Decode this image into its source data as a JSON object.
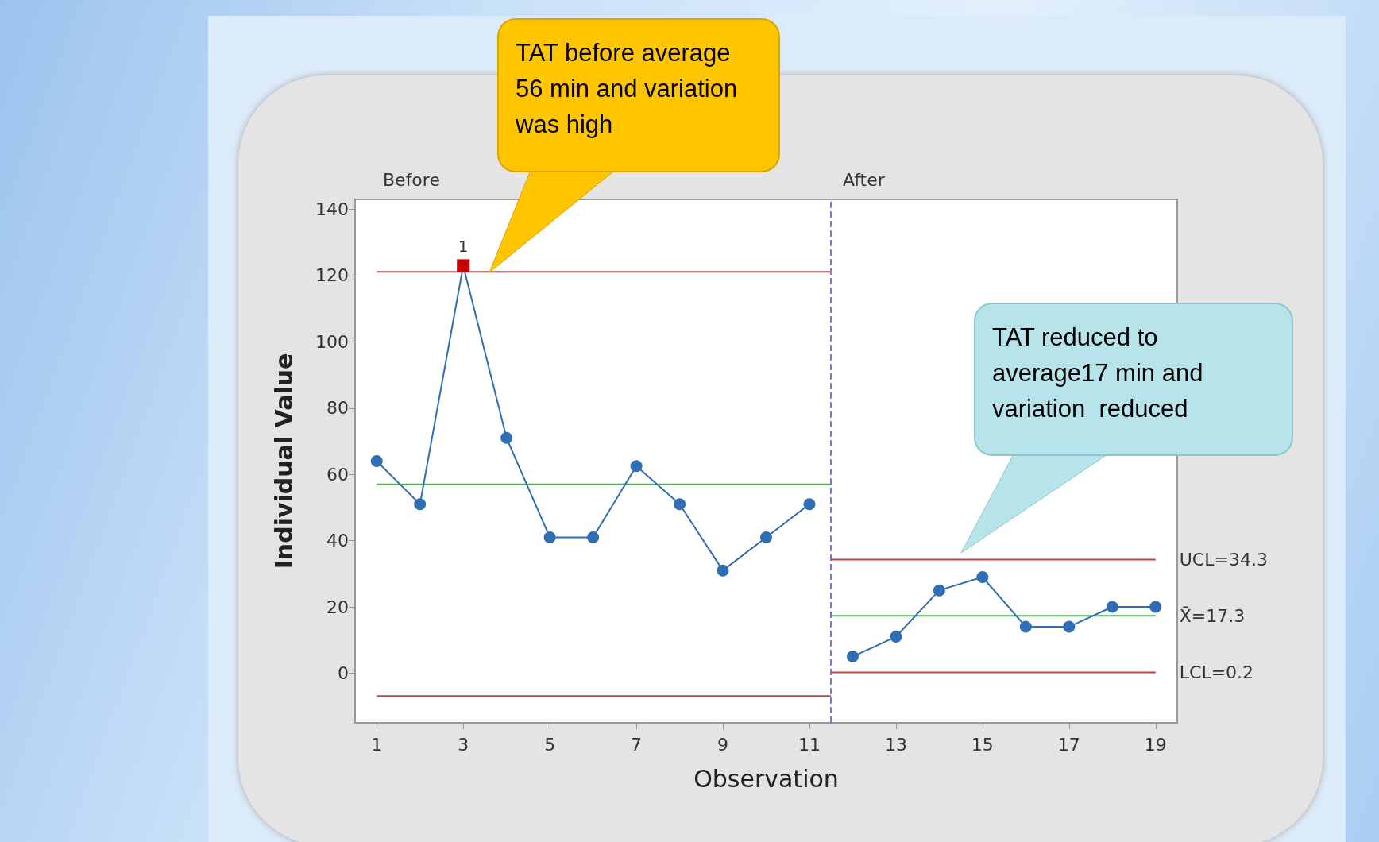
{
  "chart_data": {
    "type": "line",
    "xlabel": "Observation",
    "ylabel": "Individual Value",
    "xlim": [
      0.5,
      19.5
    ],
    "ylim": [
      -15,
      143
    ],
    "xticks": [
      1,
      3,
      5,
      7,
      9,
      11,
      13,
      15,
      17,
      19
    ],
    "yticks": [
      0,
      20,
      40,
      60,
      80,
      100,
      120,
      140
    ],
    "grid": false,
    "legend": false,
    "series": [
      {
        "type": "line",
        "color": "#b8474a",
        "marker": "none",
        "x": [
          1,
          11.5
        ],
        "values": [
          121.1,
          121.1
        ]
      },
      {
        "type": "line",
        "color": "#4caf50",
        "marker": "none",
        "x": [
          1,
          11.5
        ],
        "values": [
          57,
          57
        ]
      },
      {
        "type": "line",
        "color": "#b8474a",
        "marker": "none",
        "x": [
          1,
          11.5
        ],
        "values": [
          -6.9,
          -6.9
        ]
      },
      {
        "type": "line",
        "name": "UCL=34.3",
        "color": "#b8474a",
        "marker": "none",
        "x": [
          11.5,
          19
        ],
        "values": [
          34.3,
          34.3
        ]
      },
      {
        "type": "line",
        "name": "X̄=17.3",
        "color": "#4caf50",
        "marker": "none",
        "x": [
          11.5,
          19
        ],
        "values": [
          17.3,
          17.3
        ]
      },
      {
        "type": "line",
        "name": "LCL=0.2",
        "color": "#b8474a",
        "marker": "none",
        "x": [
          11.5,
          19
        ],
        "values": [
          0.2,
          0.2
        ]
      },
      {
        "type": "line",
        "color": "#2f6db5",
        "marker": "circle",
        "x": [
          1,
          2,
          3,
          4,
          5,
          6,
          7,
          8,
          9,
          10,
          11
        ],
        "values": [
          64,
          51,
          123,
          71,
          41,
          41,
          62.5,
          51,
          31,
          41,
          51
        ]
      },
      {
        "type": "line",
        "color": "#2f6db5",
        "marker": "circle",
        "x": [
          12,
          13,
          14,
          15,
          16,
          17,
          18,
          19
        ],
        "values": [
          5,
          11,
          25,
          29,
          14,
          14,
          20,
          20
        ]
      },
      {
        "type": "scatter",
        "color": "#cc0000",
        "marker": "square",
        "x": [
          3
        ],
        "values": [
          123
        ]
      }
    ],
    "ref_lines": [
      {
        "axis": "x",
        "value": 11.5,
        "color": "#8e6bd8",
        "line_style": "dashed"
      }
    ],
    "annotations": [
      "Before",
      "After",
      {
        "text": "1",
        "x": 3,
        "y": 123
      },
      "TAT before average\n56 min and variation\nwas high",
      "TAT reduced to\naverage17 min and\nvariation  reduced"
    ]
  }
}
